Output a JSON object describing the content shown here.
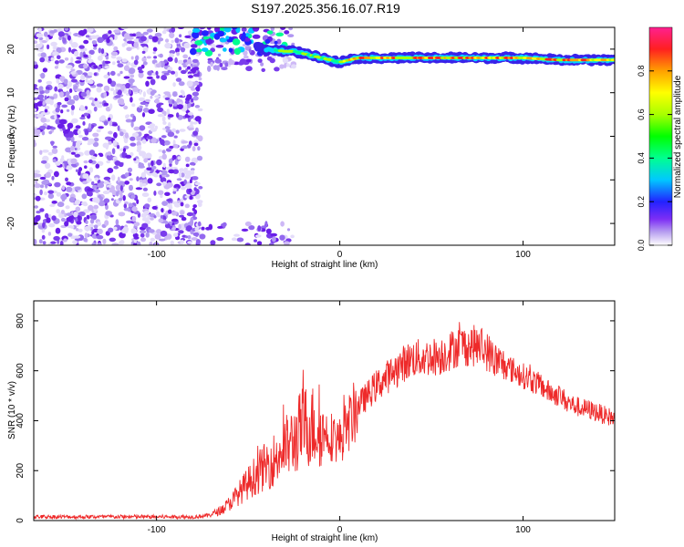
{
  "title": "S197.2025.356.16.07.R19",
  "chart_data": [
    {
      "type": "heatmap",
      "title": "S197.2025.356.16.07.R19",
      "xlabel": "Height of straight line (km)",
      "ylabel": "Frequency (Hz)",
      "xlim": [
        -167,
        150
      ],
      "ylim": [
        -25,
        25
      ],
      "xticks": [
        -100,
        0,
        100
      ],
      "yticks": [
        -20,
        -10,
        0,
        10,
        20
      ],
      "description_of_structure": {
        "noise_region_x": [
          -167,
          -80
        ],
        "gap_region_x": [
          -80,
          -30
        ],
        "tone_track": {
          "x": [
            -50,
            -40,
            -30,
            -25,
            -20,
            -15,
            -10,
            -5,
            0,
            5,
            10,
            20,
            40,
            60,
            80,
            100,
            120,
            140,
            150
          ],
          "y": [
            21,
            20,
            19.5,
            19.5,
            19,
            18.5,
            18,
            17.5,
            17,
            17.5,
            18,
            18,
            18,
            18,
            18,
            18,
            17.5,
            17.5,
            17.5
          ]
        }
      },
      "colorbar": {
        "label": "Normalized spectral amplitude",
        "range": [
          0,
          1
        ],
        "ticks": [
          0.0,
          0.2,
          0.4,
          0.6,
          0.8
        ],
        "colors": [
          "#ffffff",
          "#b8a0f0",
          "#7d2ef5",
          "#2222ff",
          "#00c8ff",
          "#00ff90",
          "#00ff00",
          "#a8ff00",
          "#ffff00",
          "#ffa000",
          "#ff2020",
          "#ff2090"
        ]
      }
    },
    {
      "type": "line",
      "xlabel": "Height of straight line (km)",
      "ylabel": "SNR (10 * v/v)",
      "xlim": [
        -167,
        150
      ],
      "ylim": [
        0,
        880
      ],
      "xticks": [
        -100,
        0,
        100
      ],
      "yticks": [
        0,
        200,
        400,
        600,
        800
      ],
      "line_color": "#ee2a2a",
      "envelope": {
        "x": [
          -167,
          -80,
          -72,
          -65,
          -60,
          -55,
          -50,
          -45,
          -40,
          -35,
          -30,
          -25,
          -20,
          -15,
          -10,
          -5,
          0,
          5,
          10,
          15,
          20,
          25,
          30,
          35,
          40,
          45,
          50,
          55,
          60,
          65,
          70,
          75,
          80,
          85,
          90,
          95,
          100,
          105,
          110,
          115,
          120,
          125,
          130,
          135,
          140,
          145,
          150
        ],
        "y": [
          15,
          15,
          20,
          40,
          70,
          110,
          150,
          190,
          220,
          250,
          290,
          320,
          380,
          380,
          360,
          340,
          320,
          390,
          460,
          500,
          540,
          570,
          600,
          630,
          650,
          650,
          655,
          660,
          680,
          700,
          700,
          700,
          680,
          640,
          620,
          600,
          580,
          560,
          540,
          510,
          500,
          470,
          455,
          445,
          435,
          420,
          410
        ]
      }
    }
  ]
}
